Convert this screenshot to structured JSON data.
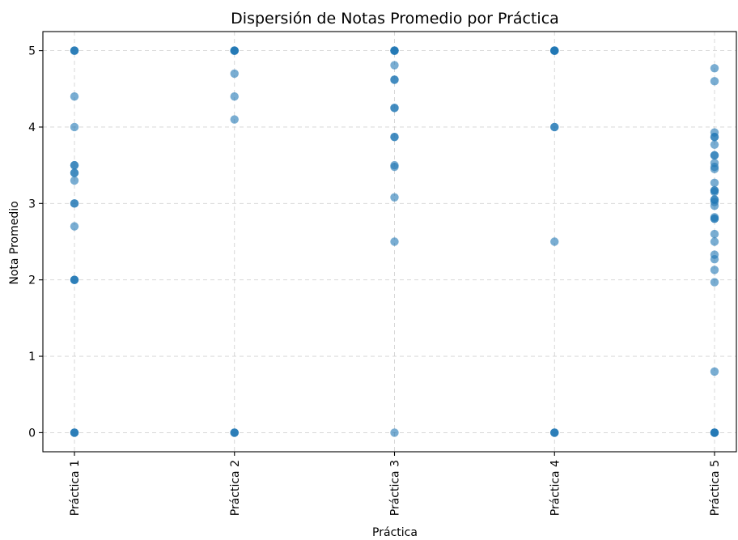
{
  "chart_data": {
    "type": "scatter",
    "title": "Dispersión de Notas Promedio por Práctica",
    "xlabel": "Práctica",
    "ylabel": "Nota Promedio",
    "categories": [
      "Práctica 1",
      "Práctica 2",
      "Práctica 3",
      "Práctica 4",
      "Práctica 5"
    ],
    "yticks": [
      "0",
      "1",
      "2",
      "3",
      "4",
      "5"
    ],
    "ylim": [
      -0.25,
      5.25
    ],
    "grid": true,
    "color": "#1f77b4",
    "series": [
      {
        "category": "Práctica 1",
        "values": [
          5,
          5,
          5,
          4.4,
          4.0,
          3.5,
          3.5,
          3.4,
          3.4,
          3.3,
          3.0,
          3.0,
          2.7,
          2.0,
          2.0,
          2.0,
          0,
          0,
          0
        ]
      },
      {
        "category": "Práctica 2",
        "values": [
          5,
          5,
          5,
          5,
          4.7,
          4.4,
          4.1,
          0,
          0,
          0
        ]
      },
      {
        "category": "Práctica 3",
        "values": [
          5,
          5,
          5,
          5,
          4.81,
          4.62,
          4.62,
          4.25,
          4.25,
          3.87,
          3.87,
          3.5,
          3.48,
          3.08,
          2.5,
          0
        ]
      },
      {
        "category": "Práctica 4",
        "values": [
          5,
          5,
          5,
          5,
          5,
          4.0,
          4.0,
          2.5,
          0,
          0,
          0
        ]
      },
      {
        "category": "Práctica 5",
        "values": [
          4.77,
          4.6,
          3.93,
          3.87,
          3.87,
          3.77,
          3.63,
          3.63,
          3.53,
          3.48,
          3.45,
          3.27,
          3.17,
          3.17,
          3.15,
          3.05,
          3.05,
          3.02,
          2.97,
          2.82,
          2.8,
          2.8,
          2.6,
          2.5,
          2.33,
          2.27,
          2.13,
          1.97,
          0.8,
          0,
          0,
          0,
          0
        ]
      }
    ]
  }
}
